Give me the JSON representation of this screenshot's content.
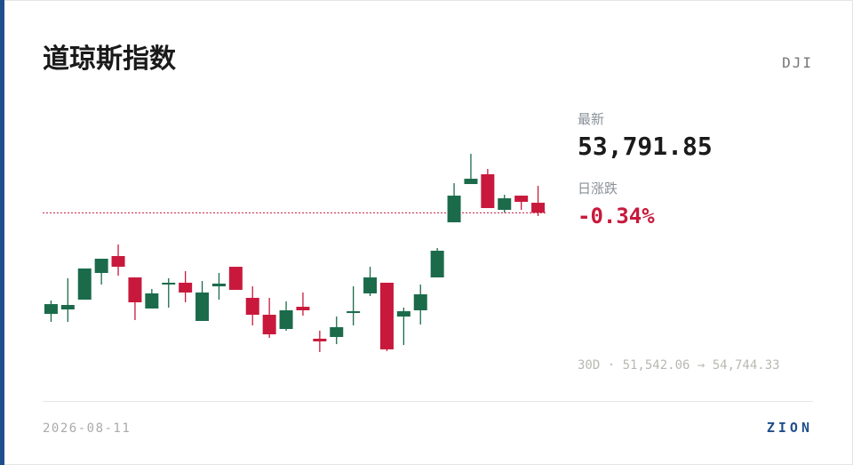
{
  "chart_data": {
    "type": "candlestick",
    "title": "道琼斯指数",
    "ticker": "DJI",
    "latest_label": "最新",
    "latest": "53,791.85",
    "change_label": "日涨跌",
    "change": "-0.34%",
    "range_label": "30D · 51,542.06 → 54,744.33",
    "date": "2026-08-11",
    "brand": "ZION",
    "up_color": "#1b6b4b",
    "down_color": "#c8193c",
    "ylim": [
      51542.06,
      54744.33
    ],
    "reference_line": 53791.85,
    "open": [
      52159,
      52231,
      52389,
      52820,
      53093,
      52748,
      52246,
      52633,
      52662,
      52045,
      52604,
      52920,
      52418,
      52145,
      51915,
      52274,
      51758,
      51786,
      52174,
      52490,
      52662,
      52116,
      52217,
      52748,
      53638,
      54256,
      54414,
      53839,
      54069,
      53954
    ],
    "high": [
      52375,
      52734,
      52892,
      53050,
      53279,
      52748,
      52561,
      52734,
      52849,
      52691,
      52820,
      52920,
      52604,
      52418,
      52361,
      52504,
      51887,
      52116,
      52604,
      52920,
      52662,
      52260,
      52633,
      53222,
      54270,
      54744.33,
      54500,
      54083,
      54069,
      54227
    ],
    "low": [
      52030,
      52030,
      52389,
      52633,
      52777,
      52059,
      52246,
      52260,
      52346,
      52045,
      52389,
      52547,
      51973,
      51772,
      51887,
      52131,
      51542.06,
      51671,
      51973,
      52447,
      51557,
      51657,
      51987,
      52748,
      53638,
      54256,
      53868,
      53792,
      53839,
      53739
    ],
    "close": [
      52317,
      52303,
      52892,
      53050,
      52920,
      52346,
      52490,
      52662,
      52504,
      52504,
      52648,
      52547,
      52145,
      51829,
      52217,
      52217,
      51715,
      51944,
      52202,
      52748,
      51586,
      52202,
      52475,
      53179,
      54069,
      54342,
      53868,
      54026,
      53969,
      53791.85
    ]
  }
}
